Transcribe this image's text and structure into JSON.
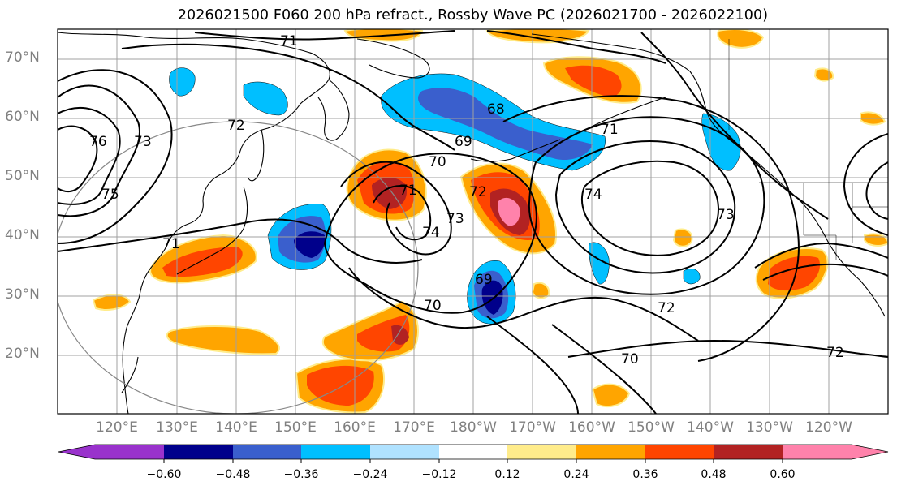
{
  "title": "2026021500 F060 200 hPa refract., Rossby Wave PC (2026021700 - 2026022100)",
  "map": {
    "lat_labels": [
      "70°N",
      "60°N",
      "50°N",
      "40°N",
      "30°N",
      "20°N"
    ],
    "lon_labels": [
      "120°E",
      "130°E",
      "140°E",
      "150°E",
      "160°E",
      "170°E",
      "180°W",
      "170°W",
      "160°W",
      "150°W",
      "140°W",
      "130°W",
      "120°W"
    ],
    "contour_labels": [
      "71",
      "68",
      "69",
      "70",
      "71",
      "72",
      "73",
      "74",
      "72",
      "70",
      "72",
      "70",
      "73",
      "71",
      "69",
      "76",
      "75",
      "74",
      "73",
      "72",
      "71"
    ]
  },
  "colorbar": {
    "colors": [
      "#9932cc",
      "#00008b",
      "#3a5fcd",
      "#00bfff",
      "#b0e2ff",
      "#ffffff",
      "#ffec8b",
      "#ffa500",
      "#ff4500",
      "#b22222",
      "#ff82ab"
    ],
    "tick_labels": [
      "−0.60",
      "−0.48",
      "−0.36",
      "−0.24",
      "−0.12",
      "0.12",
      "0.24",
      "0.36",
      "0.48",
      "0.60"
    ]
  }
}
